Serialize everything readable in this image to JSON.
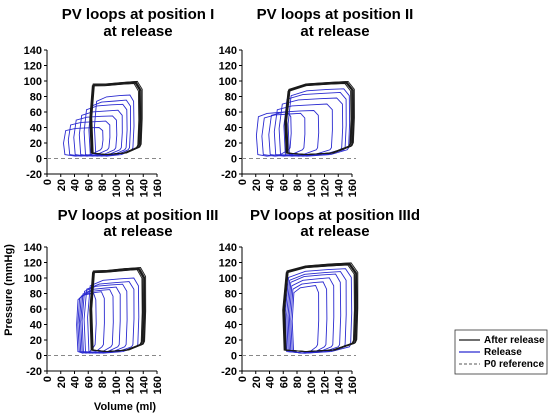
{
  "chart_data": {
    "type": "line",
    "ylabel": "Pressure (mmHg)",
    "xlabel": "Volume (ml)",
    "legend": {
      "placement": "bottom-right",
      "entries": [
        {
          "label": "After release",
          "color": "#1a1a1a",
          "style": "solid"
        },
        {
          "label": "Release",
          "color": "#2a2ad0",
          "style": "solid"
        },
        {
          "label": "P0 reference",
          "color": "#777777",
          "style": "dashed"
        }
      ]
    },
    "colors": {
      "after_release": "#1a1a1a",
      "release": "#2a2ad0",
      "reference": "#888888"
    },
    "panels": [
      {
        "title_line1": "PV loops at position I",
        "title_line2": "at release",
        "xlim": [
          0,
          160
        ],
        "ylim": [
          -20,
          140
        ],
        "xticks": [
          "0",
          "20",
          "40",
          "60",
          "80",
          "100",
          "120",
          "140",
          "160"
        ],
        "yticks": [
          "140",
          "120",
          "100",
          "80",
          "60",
          "40",
          "20",
          "0",
          "-20"
        ],
        "after_release": {
          "edv": 135,
          "esv": 65,
          "p_peak": 98,
          "p_es": 95,
          "p_ed": 18,
          "p_min": 5,
          "n_loops": 6
        },
        "release": [
          {
            "esv": 70,
            "edv": 125,
            "p_peak": 82
          },
          {
            "esv": 62,
            "edv": 120,
            "p_peak": 75
          },
          {
            "esv": 55,
            "edv": 115,
            "p_peak": 70
          },
          {
            "esv": 48,
            "edv": 108,
            "p_peak": 62
          },
          {
            "esv": 40,
            "edv": 100,
            "p_peak": 55
          },
          {
            "esv": 32,
            "edv": 90,
            "p_peak": 48
          },
          {
            "esv": 25,
            "edv": 80,
            "p_peak": 40
          }
        ]
      },
      {
        "title_line1": "PV loops at position II",
        "title_line2": "at release",
        "xlim": [
          0,
          160
        ],
        "ylim": [
          -20,
          140
        ],
        "xticks": [
          "0",
          "20",
          "40",
          "60",
          "80",
          "100",
          "120",
          "140",
          "160"
        ],
        "yticks": [
          "140",
          "120",
          "100",
          "80",
          "60",
          "40",
          "20",
          "0",
          "-20"
        ],
        "after_release": {
          "edv": 160,
          "esv": 65,
          "p_peak": 98,
          "p_es": 88,
          "p_ed": 20,
          "p_min": 5,
          "n_loops": 6
        },
        "release": [
          {
            "esv": 68,
            "edv": 155,
            "p_peak": 90
          },
          {
            "esv": 62,
            "edv": 150,
            "p_peak": 85
          },
          {
            "esv": 55,
            "edv": 145,
            "p_peak": 78
          },
          {
            "esv": 48,
            "edv": 130,
            "p_peak": 70
          },
          {
            "esv": 40,
            "edv": 110,
            "p_peak": 62
          },
          {
            "esv": 30,
            "edv": 90,
            "p_peak": 58
          },
          {
            "esv": 22,
            "edv": 70,
            "p_peak": 60
          }
        ]
      },
      {
        "title_line1": "PV loops at position III",
        "title_line2": "at release",
        "xlim": [
          0,
          160
        ],
        "ylim": [
          -20,
          140
        ],
        "xticks": [
          "0",
          "20",
          "40",
          "60",
          "80",
          "100",
          "120",
          "140",
          "160"
        ],
        "yticks": [
          "140",
          "120",
          "100",
          "80",
          "60",
          "40",
          "20",
          "0",
          "-20"
        ],
        "after_release": {
          "edv": 140,
          "esv": 65,
          "p_peak": 112,
          "p_es": 108,
          "p_ed": 18,
          "p_min": 5,
          "n_loops": 6
        },
        "release": [
          {
            "esv": 60,
            "edv": 132,
            "p_peak": 100
          },
          {
            "esv": 55,
            "edv": 125,
            "p_peak": 95
          },
          {
            "esv": 52,
            "edv": 115,
            "p_peak": 92
          },
          {
            "esv": 50,
            "edv": 105,
            "p_peak": 88
          },
          {
            "esv": 48,
            "edv": 95,
            "p_peak": 85
          },
          {
            "esv": 46,
            "edv": 82,
            "p_peak": 82
          },
          {
            "esv": 44,
            "edv": 70,
            "p_peak": 80
          }
        ]
      },
      {
        "title_line1": "PV loops at position IIId",
        "title_line2": "at release",
        "xlim": [
          0,
          160
        ],
        "ylim": [
          -20,
          140
        ],
        "xticks": [
          "0",
          "20",
          "40",
          "60",
          "80",
          "100",
          "120",
          "140",
          "160"
        ],
        "yticks": [
          "140",
          "120",
          "100",
          "80",
          "60",
          "40",
          "20",
          "0",
          "-20"
        ],
        "after_release": {
          "edv": 165,
          "esv": 62,
          "p_peak": 118,
          "p_es": 108,
          "p_ed": 20,
          "p_min": 5,
          "n_loops": 6
        },
        "release": [
          {
            "esv": 64,
            "edv": 158,
            "p_peak": 112
          },
          {
            "esv": 66,
            "edv": 150,
            "p_peak": 108
          },
          {
            "esv": 68,
            "edv": 142,
            "p_peak": 105
          },
          {
            "esv": 70,
            "edv": 132,
            "p_peak": 100
          },
          {
            "esv": 72,
            "edv": 122,
            "p_peak": 95
          },
          {
            "esv": 74,
            "edv": 110,
            "p_peak": 90
          }
        ]
      }
    ]
  }
}
